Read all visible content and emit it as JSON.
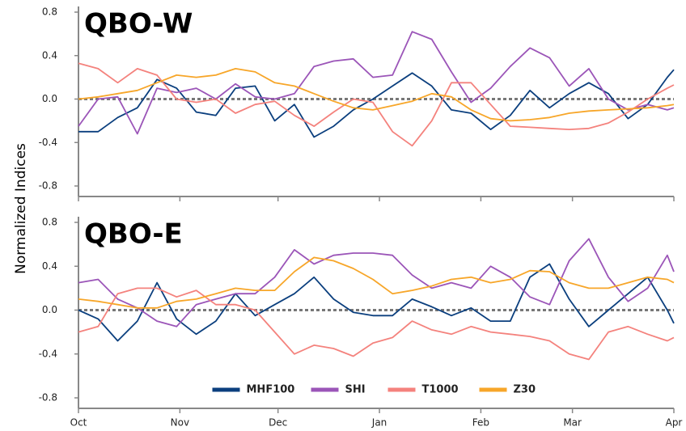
{
  "ylabel": "Normalized Indices",
  "chart_data": [
    {
      "type": "line",
      "title": "QBO-W",
      "x": [
        0,
        6,
        12,
        18,
        24,
        30,
        36,
        42,
        48,
        54,
        60,
        66,
        72,
        78,
        84,
        90,
        96,
        102,
        108,
        114,
        120,
        126,
        132,
        138,
        144,
        150,
        156,
        162,
        168,
        174,
        180,
        182
      ],
      "xlim": [
        0,
        182
      ],
      "xticks": [
        0,
        31,
        61,
        92,
        123,
        151,
        182
      ],
      "ylim": [
        -0.8,
        0.8
      ],
      "yticks": [
        -0.8,
        -0.4,
        {
          "value": 0,
          "label": "0.0"
        },
        0.4,
        0.8
      ],
      "zero_line": true,
      "series": [
        {
          "color": "#0b3f7e",
          "values": [
            -0.3,
            -0.3,
            -0.17,
            -0.08,
            0.18,
            0.1,
            -0.12,
            -0.15,
            0.1,
            0.12,
            -0.2,
            -0.05,
            -0.35,
            -0.25,
            -0.1,
            0.0,
            0.12,
            0.24,
            0.12,
            -0.1,
            -0.13,
            -0.28,
            -0.15,
            0.08,
            -0.08,
            0.05,
            0.15,
            0.05,
            -0.18,
            -0.05,
            0.2,
            0.27
          ]
        },
        {
          "color": "#9b55b8",
          "values": [
            -0.25,
            0.0,
            0.02,
            -0.32,
            0.1,
            0.06,
            0.1,
            0.0,
            0.14,
            0.02,
            0.0,
            0.05,
            0.3,
            0.35,
            0.37,
            0.2,
            0.22,
            0.62,
            0.55,
            0.25,
            -0.03,
            0.1,
            0.3,
            0.47,
            0.38,
            0.12,
            0.28,
            0.0,
            -0.1,
            -0.05,
            -0.1,
            -0.08
          ]
        },
        {
          "color": "#f4827d",
          "values": [
            0.33,
            0.28,
            0.15,
            0.28,
            0.22,
            0.0,
            -0.03,
            0.0,
            -0.13,
            -0.05,
            -0.02,
            -0.15,
            -0.25,
            -0.12,
            0.0,
            -0.03,
            -0.3,
            -0.43,
            -0.2,
            0.15,
            0.15,
            -0.05,
            -0.25,
            -0.26,
            -0.27,
            -0.28,
            -0.27,
            -0.22,
            -0.12,
            0.0,
            0.1,
            0.13
          ]
        },
        {
          "color": "#f7a629",
          "values": [
            0.0,
            0.02,
            0.05,
            0.08,
            0.15,
            0.22,
            0.2,
            0.22,
            0.28,
            0.25,
            0.15,
            0.12,
            0.05,
            -0.02,
            -0.08,
            -0.1,
            -0.06,
            -0.02,
            0.05,
            0.02,
            -0.1,
            -0.18,
            -0.2,
            -0.19,
            -0.17,
            -0.13,
            -0.11,
            -0.1,
            -0.09,
            -0.08,
            -0.06,
            -0.05
          ]
        }
      ]
    },
    {
      "type": "line",
      "title": "QBO-E",
      "x": [
        0,
        6,
        12,
        18,
        24,
        30,
        36,
        42,
        48,
        54,
        60,
        66,
        72,
        78,
        84,
        90,
        96,
        102,
        108,
        114,
        120,
        126,
        132,
        138,
        144,
        150,
        156,
        162,
        168,
        174,
        180,
        182
      ],
      "xlim": [
        0,
        182
      ],
      "xticks": [
        {
          "value": 0,
          "label": "Oct"
        },
        {
          "value": 31,
          "label": "Nov"
        },
        {
          "value": 61,
          "label": "Dec"
        },
        {
          "value": 92,
          "label": "Jan"
        },
        {
          "value": 123,
          "label": "Feb"
        },
        {
          "value": 151,
          "label": "Mar"
        },
        {
          "value": 182,
          "label": "Apr"
        }
      ],
      "ylim": [
        -0.8,
        0.8
      ],
      "yticks": [
        -0.8,
        -0.4,
        {
          "value": 0,
          "label": "0.0"
        },
        0.4,
        0.8
      ],
      "zero_line": true,
      "legend": "lower center",
      "series": [
        {
          "name": "MHF100",
          "color": "#0b3f7e",
          "values": [
            0.0,
            -0.08,
            -0.28,
            -0.1,
            0.25,
            -0.08,
            -0.22,
            -0.1,
            0.15,
            -0.05,
            0.05,
            0.15,
            0.3,
            0.1,
            -0.02,
            -0.05,
            -0.05,
            0.1,
            0.03,
            -0.05,
            0.02,
            -0.1,
            -0.1,
            0.3,
            0.42,
            0.1,
            -0.15,
            0.0,
            0.15,
            0.3,
            0.0,
            -0.12
          ]
        },
        {
          "name": "SHI",
          "color": "#9b55b8",
          "values": [
            0.25,
            0.28,
            0.1,
            0.02,
            -0.1,
            -0.15,
            0.05,
            0.1,
            0.15,
            0.15,
            0.3,
            0.55,
            0.42,
            0.5,
            0.52,
            0.52,
            0.5,
            0.32,
            0.2,
            0.25,
            0.2,
            0.4,
            0.3,
            0.12,
            0.05,
            0.45,
            0.65,
            0.3,
            0.08,
            0.2,
            0.5,
            0.35
          ]
        },
        {
          "name": "T1000",
          "color": "#f4827d",
          "values": [
            -0.2,
            -0.15,
            0.15,
            0.2,
            0.2,
            0.12,
            0.18,
            0.05,
            0.05,
            0.0,
            -0.2,
            -0.4,
            -0.32,
            -0.35,
            -0.42,
            -0.3,
            -0.25,
            -0.1,
            -0.18,
            -0.22,
            -0.15,
            -0.2,
            -0.22,
            -0.24,
            -0.28,
            -0.4,
            -0.45,
            -0.2,
            -0.15,
            -0.22,
            -0.28,
            -0.25
          ]
        },
        {
          "name": "Z30",
          "color": "#f7a629",
          "values": [
            0.1,
            0.08,
            0.05,
            0.02,
            0.02,
            0.08,
            0.1,
            0.15,
            0.2,
            0.18,
            0.18,
            0.35,
            0.48,
            0.45,
            0.38,
            0.28,
            0.15,
            0.18,
            0.22,
            0.28,
            0.3,
            0.25,
            0.28,
            0.36,
            0.35,
            0.25,
            0.2,
            0.2,
            0.25,
            0.3,
            0.28,
            0.25
          ]
        }
      ]
    }
  ]
}
